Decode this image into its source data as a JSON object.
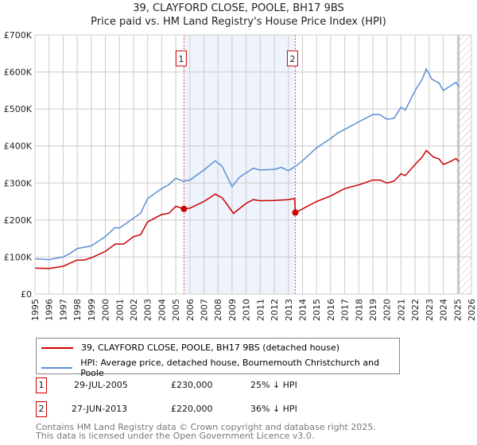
{
  "chart_data": {
    "type": "line",
    "title": "39, CLAYFORD CLOSE, POOLE, BH17 9BS",
    "subtitle": "Price paid vs. HM Land Registry's House Price Index (HPI)",
    "xlim": [
      1995,
      2026
    ],
    "ylim": [
      0,
      700000
    ],
    "yticks": [
      0,
      100000,
      200000,
      300000,
      400000,
      500000,
      600000,
      700000
    ],
    "ytick_labels": [
      "£0",
      "£100K",
      "£200K",
      "£300K",
      "£400K",
      "£500K",
      "£600K",
      "£700K"
    ],
    "xtick_labels": [
      "1995",
      "1996",
      "1997",
      "1998",
      "1999",
      "2000",
      "2001",
      "2002",
      "2003",
      "2004",
      "2005",
      "2006",
      "2007",
      "2008",
      "2009",
      "2010",
      "2011",
      "2012",
      "2013",
      "2014",
      "2015",
      "2016",
      "2017",
      "2018",
      "2019",
      "2020",
      "2021",
      "2022",
      "2023",
      "2024",
      "2025",
      "2026"
    ],
    "grid": true,
    "shaded_range": [
      2005.58,
      2013.49
    ],
    "forecast_hatch_from": 2025.1,
    "series": [
      {
        "name": "39, CLAYFORD CLOSE, POOLE, BH17 9BS (detached house)",
        "color": "#cc0000",
        "x": [
          1995,
          1996,
          1997,
          1998,
          1998.5,
          1999,
          2000,
          2000.7,
          2001.3,
          2002,
          2002.5,
          2003,
          2004,
          2004.5,
          2005,
          2005.58,
          2006,
          2007,
          2007.8,
          2008.3,
          2009.1,
          2009.5,
          2010,
          2010.5,
          2011,
          2012,
          2013,
          2013.45,
          2013.49,
          2014,
          2015,
          2016,
          2017,
          2018,
          2019,
          2019.5,
          2020,
          2020.5,
          2021,
          2021.3,
          2022,
          2022.5,
          2022.8,
          2023.3,
          2023.7,
          2024,
          2024.5,
          2024.9,
          2025.1
        ],
        "y": [
          70000,
          69000,
          75000,
          92000,
          92000,
          98000,
          115000,
          135000,
          135000,
          155000,
          160000,
          195000,
          215000,
          218000,
          237000,
          230000,
          232000,
          250000,
          270000,
          260000,
          218000,
          230000,
          245000,
          255000,
          252000,
          253000,
          255000,
          258000,
          220000,
          230000,
          250000,
          265000,
          285000,
          295000,
          308000,
          308000,
          300000,
          305000,
          325000,
          320000,
          350000,
          370000,
          388000,
          370000,
          365000,
          350000,
          358000,
          366000,
          358000
        ]
      },
      {
        "name": "HPI: Average price, detached house, Bournemouth Christchurch and Poole",
        "color": "#5b8fd4",
        "x": [
          1995,
          1996,
          1997,
          1997.5,
          1998,
          1999,
          2000,
          2000.7,
          2001,
          2002,
          2002.5,
          2003,
          2004,
          2004.5,
          2005,
          2005.5,
          2006,
          2007,
          2007.8,
          2008.3,
          2009,
          2009.5,
          2010.5,
          2011,
          2012,
          2012.5,
          2013,
          2013.5,
          2014,
          2015,
          2016,
          2016.5,
          2017,
          2018,
          2019,
          2019.5,
          2020,
          2020.5,
          2021,
          2021.3,
          2022,
          2022.5,
          2022.8,
          2023.2,
          2023.7,
          2024,
          2024.5,
          2024.9,
          2025.1
        ],
        "y": [
          95000,
          93000,
          100000,
          110000,
          123000,
          130000,
          155000,
          180000,
          178000,
          205000,
          218000,
          258000,
          285000,
          295000,
          313000,
          305000,
          308000,
          335000,
          360000,
          345000,
          290000,
          315000,
          340000,
          335000,
          337000,
          342000,
          333000,
          345000,
          360000,
          395000,
          420000,
          435000,
          445000,
          465000,
          485000,
          485000,
          472000,
          475000,
          505000,
          497000,
          550000,
          580000,
          608000,
          580000,
          570000,
          550000,
          562000,
          572000,
          560000
        ]
      }
    ],
    "annotations": [
      {
        "label": "1",
        "x": 2005.58,
        "y": 230000
      },
      {
        "label": "2",
        "x": 2013.49,
        "y": 220000
      }
    ]
  },
  "legend": {
    "red": "39, CLAYFORD CLOSE, POOLE, BH17 9BS (detached house)",
    "blue": "HPI: Average price, detached house, Bournemouth Christchurch and Poole"
  },
  "transactions": [
    {
      "num": "1",
      "date": "29-JUL-2005",
      "price": "£230,000",
      "delta": "25% ↓ HPI"
    },
    {
      "num": "2",
      "date": "27-JUN-2013",
      "price": "£220,000",
      "delta": "36% ↓ HPI"
    }
  ],
  "footer": {
    "line1": "Contains HM Land Registry data © Crown copyright and database right 2025.",
    "line2": "This data is licensed under the Open Government Licence v3.0."
  }
}
